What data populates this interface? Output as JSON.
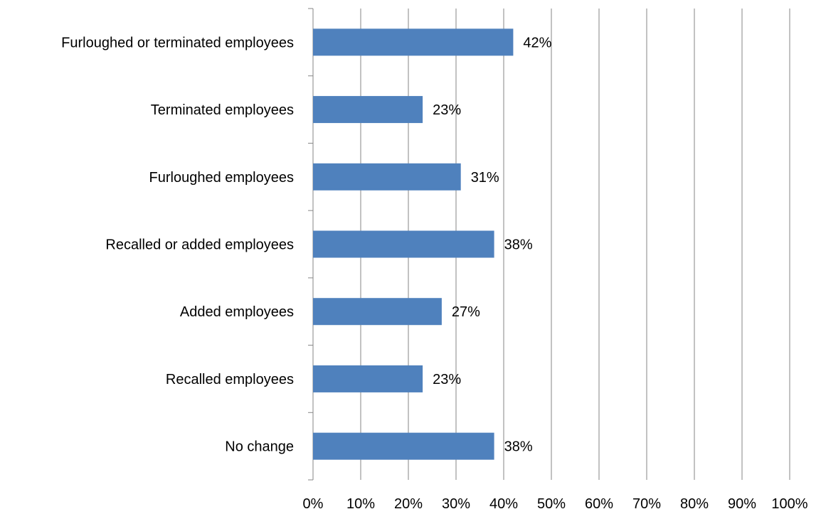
{
  "chart_data": {
    "type": "bar",
    "orientation": "horizontal",
    "categories": [
      "Furloughed or terminated employees",
      "Terminated employees",
      "Furloughed employees",
      "Recalled or added employees",
      "Added employees",
      "Recalled employees",
      "No change"
    ],
    "values": [
      42,
      23,
      31,
      38,
      27,
      23,
      38
    ],
    "data_labels": [
      "42%",
      "23%",
      "31%",
      "38%",
      "27%",
      "23%",
      "38%"
    ],
    "x_ticks": [
      "0%",
      "10%",
      "20%",
      "30%",
      "40%",
      "50%",
      "60%",
      "70%",
      "80%",
      "90%",
      "100%"
    ],
    "xlim": [
      0,
      100
    ],
    "title": "",
    "xlabel": "",
    "ylabel": "",
    "grid": "vertical",
    "legend": "none",
    "colors": {
      "bar": "#4f81bd",
      "grid": "#868686",
      "axis": "#868686"
    }
  }
}
